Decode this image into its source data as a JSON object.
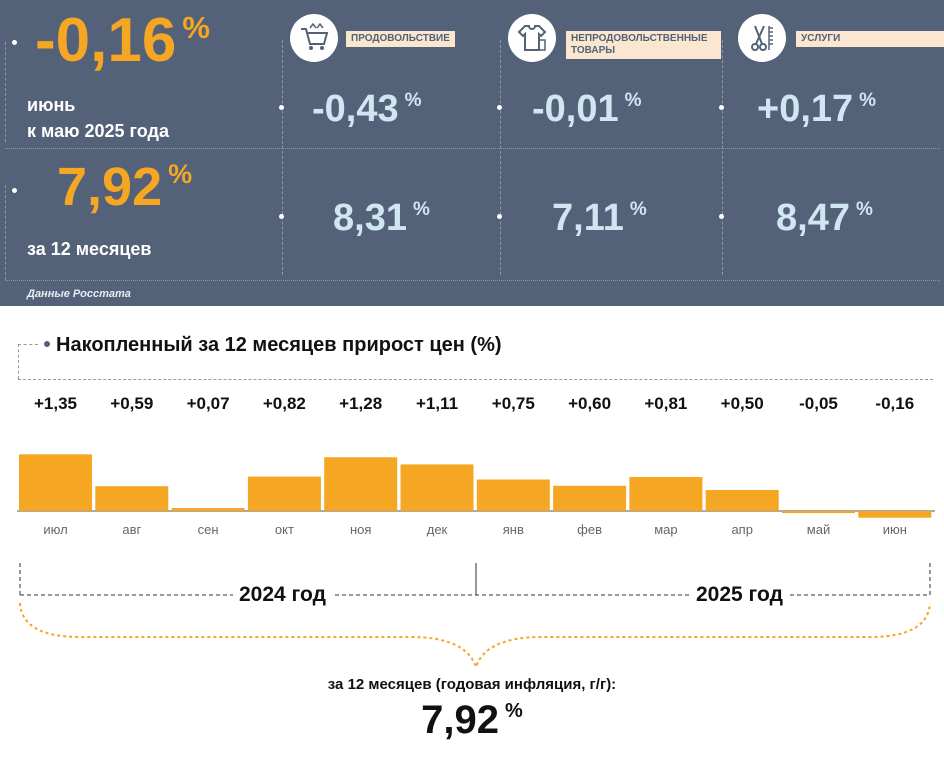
{
  "header": {
    "monthly_value": "-0,16",
    "monthly_period_line1": "июнь",
    "monthly_period_line2": "к маю 2025 года",
    "annual_value": "7,92",
    "annual_period": "за 12 месяцев",
    "percent_sign": "%",
    "source": "Данные Росстата",
    "accent_color": "#f5a623",
    "panel_color": "#536278",
    "categories": [
      {
        "label": "ПРОДОВОЛЬСТВИЕ",
        "icon": "shopping-cart-icon",
        "monthly": "-0,43",
        "annual": "8,31"
      },
      {
        "label": "НЕПРОДОВОЛЬСТВЕННЫЕ ТОВАРЫ",
        "icon": "clothing-icon",
        "monthly": "-0,01",
        "annual": "7,11"
      },
      {
        "label": "УСЛУГИ",
        "icon": "scissors-comb-icon",
        "monthly": "+0,17",
        "annual": "8,47"
      }
    ]
  },
  "chart_data": {
    "type": "bar",
    "title": "Накопленный за 12 месяцев прирост цен (%)",
    "categories": [
      "июл",
      "авг",
      "сен",
      "окт",
      "ноя",
      "дек",
      "янв",
      "фев",
      "мар",
      "апр",
      "май",
      "июн"
    ],
    "values": [
      1.35,
      0.59,
      0.07,
      0.82,
      1.28,
      1.11,
      0.75,
      0.6,
      0.81,
      0.5,
      -0.05,
      -0.16
    ],
    "value_labels": [
      "+1,35",
      "+0,59",
      "+0,07",
      "+0,82",
      "+1,28",
      "+1,11",
      "+0,75",
      "+0,60",
      "+0,81",
      "+0,50",
      "-0,05",
      "-0,16"
    ],
    "bar_color": "#f5a623",
    "year_groups": [
      {
        "label": "2024 год",
        "months": [
          "июл",
          "авг",
          "сен",
          "окт",
          "ноя",
          "дек"
        ]
      },
      {
        "label": "2025 год",
        "months": [
          "янв",
          "фев",
          "мар",
          "апр",
          "май",
          "июн"
        ]
      }
    ],
    "total_caption": "за 12 месяцев (годовая инфляция, г/г):",
    "total_value": "7,92"
  }
}
